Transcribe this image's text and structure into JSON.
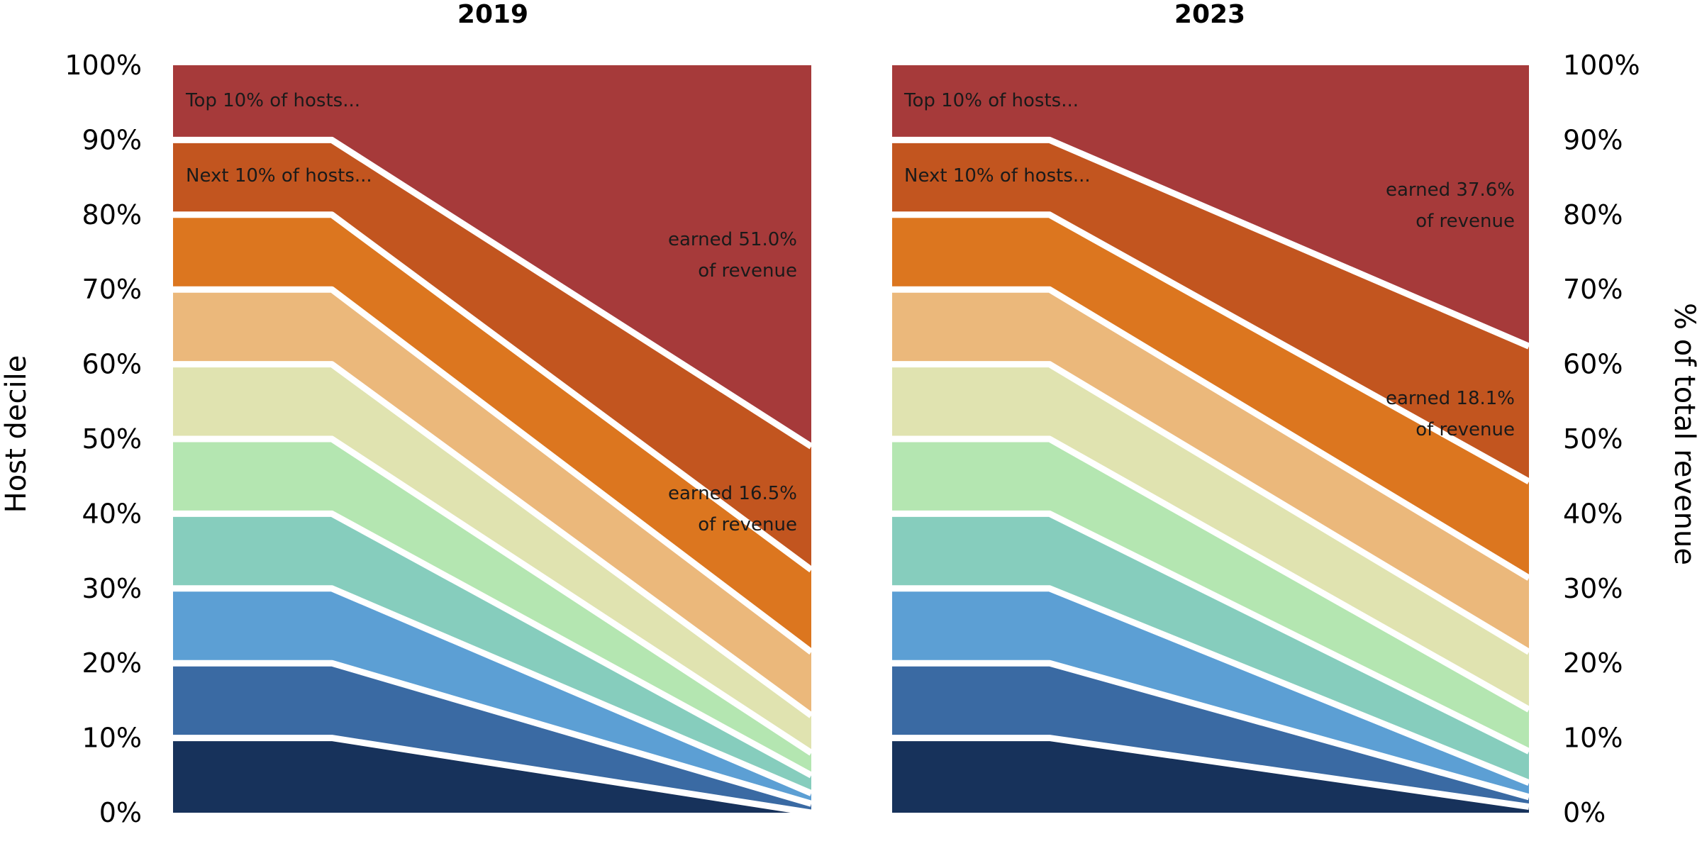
{
  "chart_data": {
    "type": "area",
    "ylabel_left": "Host decile",
    "ylabel_right": "% of total revenue",
    "ylim": [
      0,
      100
    ],
    "yticks": [
      "0%",
      "10%",
      "20%",
      "30%",
      "40%",
      "50%",
      "60%",
      "70%",
      "80%",
      "90%",
      "100%"
    ],
    "grid": false,
    "deciles": [
      10,
      20,
      30,
      40,
      50,
      60,
      70,
      80,
      90,
      100
    ],
    "colors": [
      "#17325b",
      "#3a6aa3",
      "#5c9fd4",
      "#86cdbd",
      "#b4e6b1",
      "#e0e3b0",
      "#ebb87b",
      "#dc761f",
      "#c2551f",
      "#a63a3a"
    ],
    "panels": [
      {
        "title": "2019",
        "cumulative_revenue": [
          0,
          1.2,
          2.6,
          5.0,
          8.0,
          13.0,
          21.5,
          32.5,
          49.0,
          100
        ],
        "annotations": {
          "top_label": "Top 10% of hosts...",
          "next_label": "Next 10% of hosts...",
          "top_earned_line1": "earned 51.0%",
          "top_earned_line2": "of revenue",
          "next_earned_line1": "earned 16.5%",
          "next_earned_line2": "of revenue"
        }
      },
      {
        "title": "2023",
        "cumulative_revenue": [
          0.8,
          2.1,
          4.0,
          8.2,
          13.8,
          21.5,
          31.4,
          44.3,
          62.4,
          100
        ],
        "annotations": {
          "top_label": "Top 10% of hosts...",
          "next_label": "Next 10% of hosts...",
          "top_earned_line1": "earned 37.6%",
          "top_earned_line2": "of revenue",
          "next_earned_line1": "earned 18.1%",
          "next_earned_line2": "of revenue"
        }
      }
    ]
  }
}
